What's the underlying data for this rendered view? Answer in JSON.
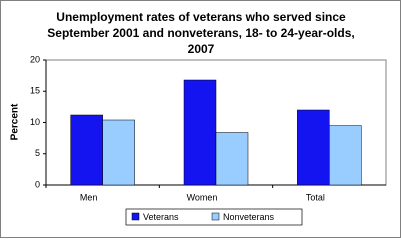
{
  "chart_data": {
    "type": "bar",
    "title": "Unemployment rates of veterans who served since September 2001 and nonveterans, 18- to 24-year-olds, 2007",
    "ylabel": "Percent",
    "categories": [
      "Men",
      "Women",
      "Total"
    ],
    "series": [
      {
        "name": "Veterans",
        "color": "#1414f0",
        "values": [
          11.2,
          16.8,
          12.0
        ]
      },
      {
        "name": "Nonveterans",
        "color": "#99ccff",
        "values": [
          10.4,
          8.4,
          9.5
        ]
      }
    ],
    "ylim": [
      0,
      20
    ],
    "yticks": [
      0,
      5,
      10,
      15,
      20
    ],
    "legend": "bottom"
  }
}
